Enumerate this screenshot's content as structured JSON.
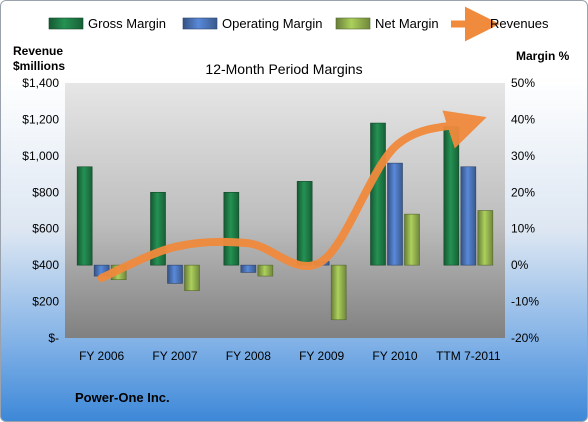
{
  "company": "Power-One Inc.",
  "chart_data": {
    "type": "bar",
    "title": "12-Month Period Margins",
    "categories": [
      "FY 2006",
      "FY 2007",
      "FY 2008",
      "FY 2009",
      "FY 2010",
      "TTM 7-2011"
    ],
    "series": [
      {
        "name": "Gross Margin",
        "axis": "right",
        "color": "#1e7a45",
        "values": [
          27,
          20,
          20,
          23,
          39,
          38
        ]
      },
      {
        "name": "Operating Margin",
        "axis": "right",
        "color": "#4a72b5",
        "values": [
          -3,
          -5,
          -2,
          1,
          28,
          27
        ]
      },
      {
        "name": "Net Margin",
        "axis": "right",
        "color": "#8fad4d",
        "values": [
          -4,
          -7,
          -3,
          -15,
          14,
          15
        ]
      },
      {
        "name": "Revenues",
        "axis": "left",
        "type": "line",
        "color": "#f08a3c",
        "values": [
          330,
          500,
          520,
          420,
          1050,
          1180
        ]
      }
    ],
    "left_axis": {
      "label_line1": "Revenue",
      "label_line2": "$millions",
      "ylim": [
        0,
        1400
      ],
      "ticks": [
        {
          "v": 0,
          "t": "$-"
        },
        {
          "v": 200,
          "t": "$200"
        },
        {
          "v": 400,
          "t": "$400"
        },
        {
          "v": 600,
          "t": "$600"
        },
        {
          "v": 800,
          "t": "$800"
        },
        {
          "v": 1000,
          "t": "$1,000"
        },
        {
          "v": 1200,
          "t": "$1,200"
        },
        {
          "v": 1400,
          "t": "$1,400"
        }
      ]
    },
    "right_axis": {
      "label": "Margin %",
      "ylim": [
        -20,
        50
      ],
      "ticks": [
        {
          "v": -20,
          "t": "-20%"
        },
        {
          "v": -10,
          "t": "-10%"
        },
        {
          "v": 0,
          "t": "0%"
        },
        {
          "v": 10,
          "t": "10%"
        },
        {
          "v": 20,
          "t": "20%"
        },
        {
          "v": 30,
          "t": "30%"
        },
        {
          "v": 40,
          "t": "40%"
        },
        {
          "v": 50,
          "t": "50%"
        }
      ]
    },
    "legend_position": "top"
  }
}
